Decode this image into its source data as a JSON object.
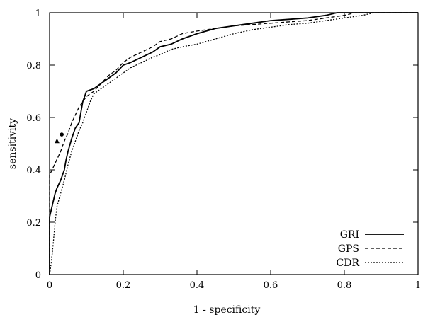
{
  "chart_data": {
    "type": "line",
    "xlabel": "1 - specificity",
    "ylabel": "sensitivity",
    "xlim": [
      0,
      1
    ],
    "ylim": [
      0,
      1
    ],
    "x_ticks": [
      "0",
      "0.2",
      "0.4",
      "0.6",
      "0.8",
      "1"
    ],
    "y_ticks": [
      "0",
      "0.2",
      "0.4",
      "0.6",
      "0.8",
      "1"
    ],
    "legend_position": "bottom-right",
    "grid": false,
    "series": [
      {
        "name": "GRI",
        "style": "solid",
        "points": [
          [
            0,
            0.0
          ],
          [
            0,
            0.22
          ],
          [
            0.005,
            0.25
          ],
          [
            0.01,
            0.28
          ],
          [
            0.015,
            0.31
          ],
          [
            0.02,
            0.33
          ],
          [
            0.03,
            0.36
          ],
          [
            0.04,
            0.4
          ],
          [
            0.045,
            0.44
          ],
          [
            0.05,
            0.47
          ],
          [
            0.06,
            0.52
          ],
          [
            0.07,
            0.56
          ],
          [
            0.08,
            0.58
          ],
          [
            0.085,
            0.62
          ],
          [
            0.09,
            0.66
          ],
          [
            0.1,
            0.7
          ],
          [
            0.12,
            0.71
          ],
          [
            0.14,
            0.73
          ],
          [
            0.16,
            0.75
          ],
          [
            0.18,
            0.77
          ],
          [
            0.2,
            0.8
          ],
          [
            0.22,
            0.81
          ],
          [
            0.25,
            0.83
          ],
          [
            0.28,
            0.85
          ],
          [
            0.3,
            0.87
          ],
          [
            0.33,
            0.88
          ],
          [
            0.36,
            0.9
          ],
          [
            0.4,
            0.92
          ],
          [
            0.45,
            0.94
          ],
          [
            0.5,
            0.95
          ],
          [
            0.55,
            0.96
          ],
          [
            0.6,
            0.97
          ],
          [
            0.65,
            0.975
          ],
          [
            0.7,
            0.98
          ],
          [
            0.75,
            0.99
          ],
          [
            0.78,
            1.0
          ],
          [
            1.0,
            1.0
          ]
        ]
      },
      {
        "name": "GPS",
        "style": "dashed",
        "points": [
          [
            0,
            0.0
          ],
          [
            0,
            0.38
          ],
          [
            0.01,
            0.41
          ],
          [
            0.02,
            0.44
          ],
          [
            0.03,
            0.47
          ],
          [
            0.04,
            0.51
          ],
          [
            0.05,
            0.54
          ],
          [
            0.06,
            0.58
          ],
          [
            0.07,
            0.61
          ],
          [
            0.08,
            0.64
          ],
          [
            0.1,
            0.68
          ],
          [
            0.12,
            0.7
          ],
          [
            0.14,
            0.73
          ],
          [
            0.16,
            0.76
          ],
          [
            0.18,
            0.78
          ],
          [
            0.2,
            0.81
          ],
          [
            0.22,
            0.83
          ],
          [
            0.25,
            0.85
          ],
          [
            0.28,
            0.87
          ],
          [
            0.3,
            0.89
          ],
          [
            0.33,
            0.9
          ],
          [
            0.36,
            0.92
          ],
          [
            0.4,
            0.93
          ],
          [
            0.45,
            0.94
          ],
          [
            0.5,
            0.95
          ],
          [
            0.55,
            0.955
          ],
          [
            0.6,
            0.96
          ],
          [
            0.65,
            0.965
          ],
          [
            0.7,
            0.97
          ],
          [
            0.75,
            0.98
          ],
          [
            0.8,
            0.99
          ],
          [
            0.83,
            1.0
          ],
          [
            1.0,
            1.0
          ]
        ]
      },
      {
        "name": "CDR",
        "style": "dotted",
        "points": [
          [
            0,
            0.0
          ],
          [
            0.005,
            0.05
          ],
          [
            0.01,
            0.12
          ],
          [
            0.015,
            0.2
          ],
          [
            0.02,
            0.26
          ],
          [
            0.03,
            0.31
          ],
          [
            0.04,
            0.36
          ],
          [
            0.05,
            0.42
          ],
          [
            0.06,
            0.47
          ],
          [
            0.07,
            0.51
          ],
          [
            0.08,
            0.55
          ],
          [
            0.09,
            0.58
          ],
          [
            0.1,
            0.62
          ],
          [
            0.11,
            0.66
          ],
          [
            0.12,
            0.69
          ],
          [
            0.14,
            0.71
          ],
          [
            0.16,
            0.73
          ],
          [
            0.18,
            0.75
          ],
          [
            0.2,
            0.77
          ],
          [
            0.22,
            0.79
          ],
          [
            0.25,
            0.81
          ],
          [
            0.28,
            0.83
          ],
          [
            0.3,
            0.84
          ],
          [
            0.33,
            0.86
          ],
          [
            0.36,
            0.87
          ],
          [
            0.4,
            0.88
          ],
          [
            0.45,
            0.9
          ],
          [
            0.5,
            0.92
          ],
          [
            0.55,
            0.935
          ],
          [
            0.6,
            0.945
          ],
          [
            0.65,
            0.955
          ],
          [
            0.7,
            0.96
          ],
          [
            0.75,
            0.97
          ],
          [
            0.8,
            0.98
          ],
          [
            0.85,
            0.99
          ],
          [
            0.88,
            1.0
          ],
          [
            1.0,
            1.0
          ]
        ]
      }
    ],
    "markers": [
      {
        "shape": "circle",
        "x": 0.033,
        "y": 0.535
      },
      {
        "shape": "triangle",
        "x": 0.02,
        "y": 0.51
      }
    ]
  }
}
